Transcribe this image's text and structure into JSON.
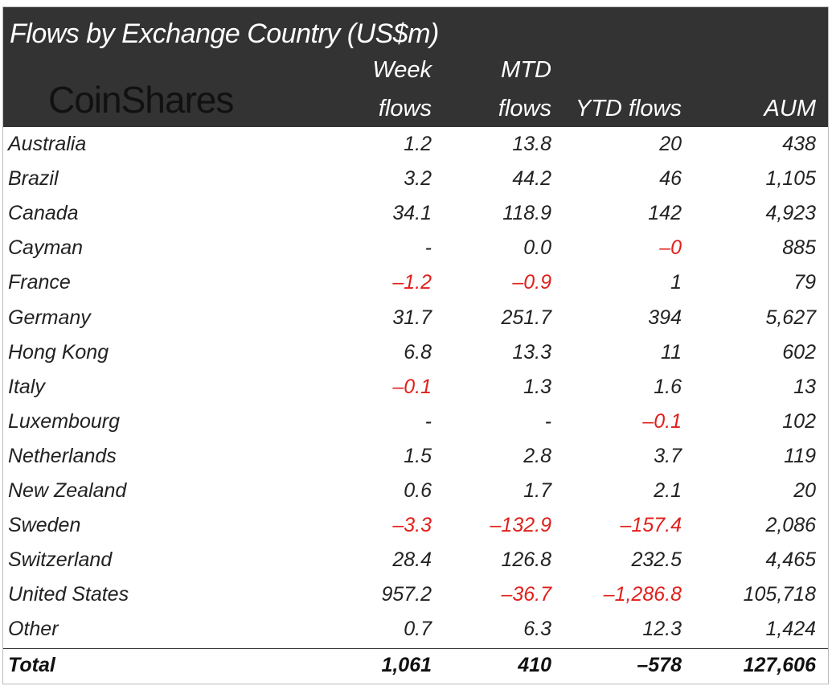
{
  "chart_data": {
    "type": "table",
    "title": "Flows by Exchange Country (US$m)",
    "logo": "CoinShares",
    "columns": [
      [
        "Week",
        "flows"
      ],
      [
        "MTD",
        "flows"
      ],
      [
        "",
        "YTD flows"
      ],
      [
        "",
        "AUM"
      ]
    ],
    "negative_color": "#e0201b",
    "header_background": "#333333",
    "rows": [
      {
        "label": "Australia",
        "values": [
          "1.2",
          "13.8",
          "20",
          "438"
        ]
      },
      {
        "label": "Brazil",
        "values": [
          "3.2",
          "44.2",
          "46",
          "1,105"
        ]
      },
      {
        "label": "Canada",
        "values": [
          "34.1",
          "118.9",
          "142",
          "4,923"
        ]
      },
      {
        "label": "Cayman",
        "values": [
          "-",
          "0.0",
          "-0",
          "885"
        ]
      },
      {
        "label": "France",
        "values": [
          "-1.2",
          "-0.9",
          "1",
          "79"
        ]
      },
      {
        "label": "Germany",
        "values": [
          "31.7",
          "251.7",
          "394",
          "5,627"
        ]
      },
      {
        "label": "Hong Kong",
        "values": [
          "6.8",
          "13.3",
          "11",
          "602"
        ]
      },
      {
        "label": "Italy",
        "values": [
          "-0.1",
          "1.3",
          "1.6",
          "13"
        ]
      },
      {
        "label": "Luxembourg",
        "values": [
          "-",
          "-",
          "-0.1",
          "102"
        ]
      },
      {
        "label": "Netherlands",
        "values": [
          "1.5",
          "2.8",
          "3.7",
          "119"
        ]
      },
      {
        "label": "New Zealand",
        "values": [
          "0.6",
          "1.7",
          "2.1",
          "20"
        ]
      },
      {
        "label": "Sweden",
        "values": [
          "-3.3",
          "-132.9",
          "-157.4",
          "2,086"
        ]
      },
      {
        "label": "Switzerland",
        "values": [
          "28.4",
          "126.8",
          "232.5",
          "4,465"
        ]
      },
      {
        "label": "United States",
        "values": [
          "957.2",
          "-36.7",
          "-1,286.8",
          "105,718"
        ]
      },
      {
        "label": "Other",
        "values": [
          "0.7",
          "6.3",
          "12.3",
          "1,424"
        ]
      }
    ],
    "total": {
      "label": "Total",
      "values": [
        "1,061",
        "410",
        "-578",
        "127,606"
      ]
    }
  }
}
